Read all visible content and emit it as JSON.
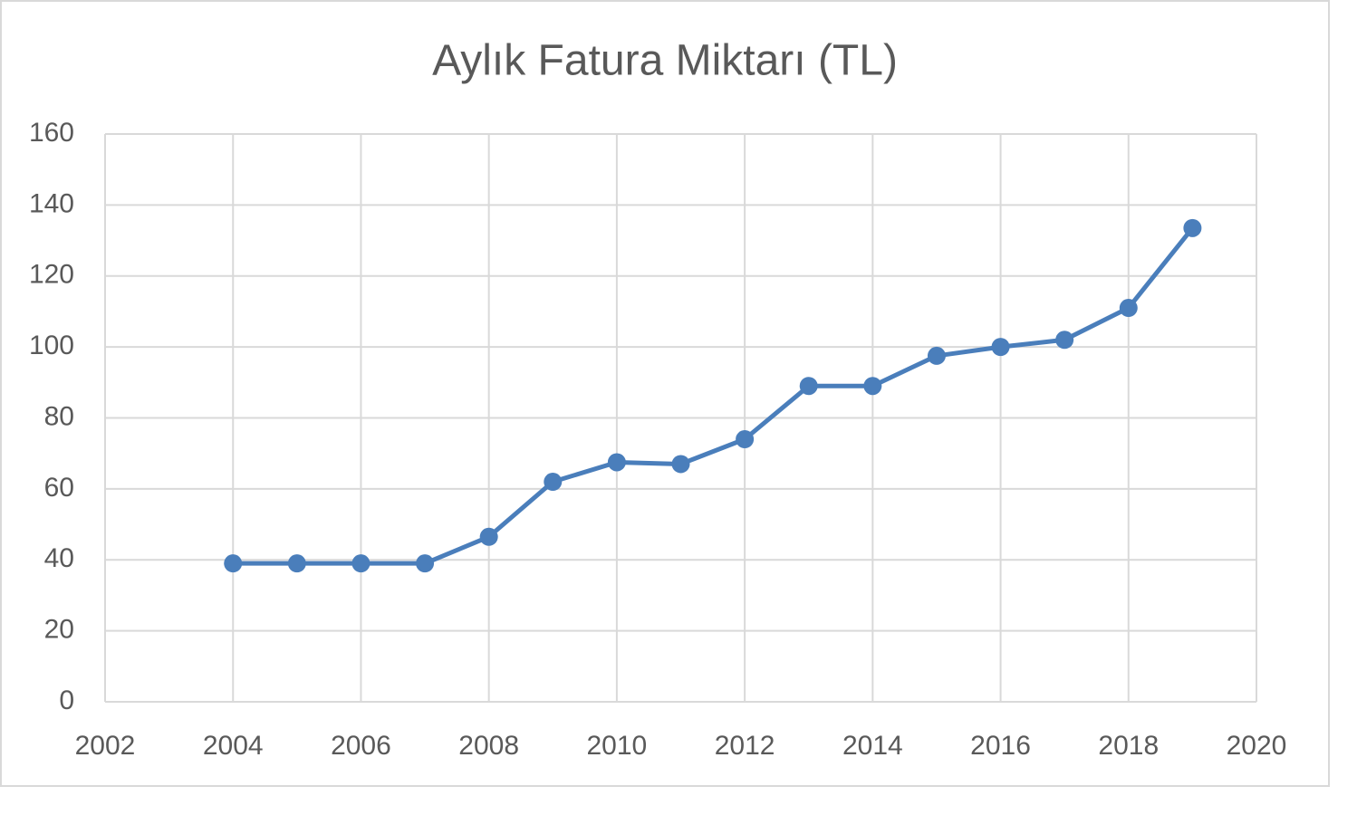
{
  "chart_data": {
    "type": "line",
    "title": "Aylık Fatura Miktarı (TL)",
    "x": [
      2004,
      2005,
      2006,
      2007,
      2008,
      2009,
      2010,
      2011,
      2012,
      2013,
      2014,
      2015,
      2016,
      2017,
      2018,
      2019
    ],
    "values": [
      39,
      39,
      39,
      39,
      46.5,
      62,
      67.5,
      67,
      74,
      89,
      89,
      97.5,
      100,
      102,
      111,
      133.5
    ],
    "color": "#4a7ebb",
    "xlim": [
      2002,
      2020
    ],
    "xticks": [
      2002,
      2004,
      2006,
      2008,
      2010,
      2012,
      2014,
      2016,
      2018,
      2020
    ],
    "ylim": [
      0,
      160
    ],
    "yticks": [
      0,
      20,
      40,
      60,
      80,
      100,
      120,
      140,
      160
    ],
    "grid": true
  }
}
